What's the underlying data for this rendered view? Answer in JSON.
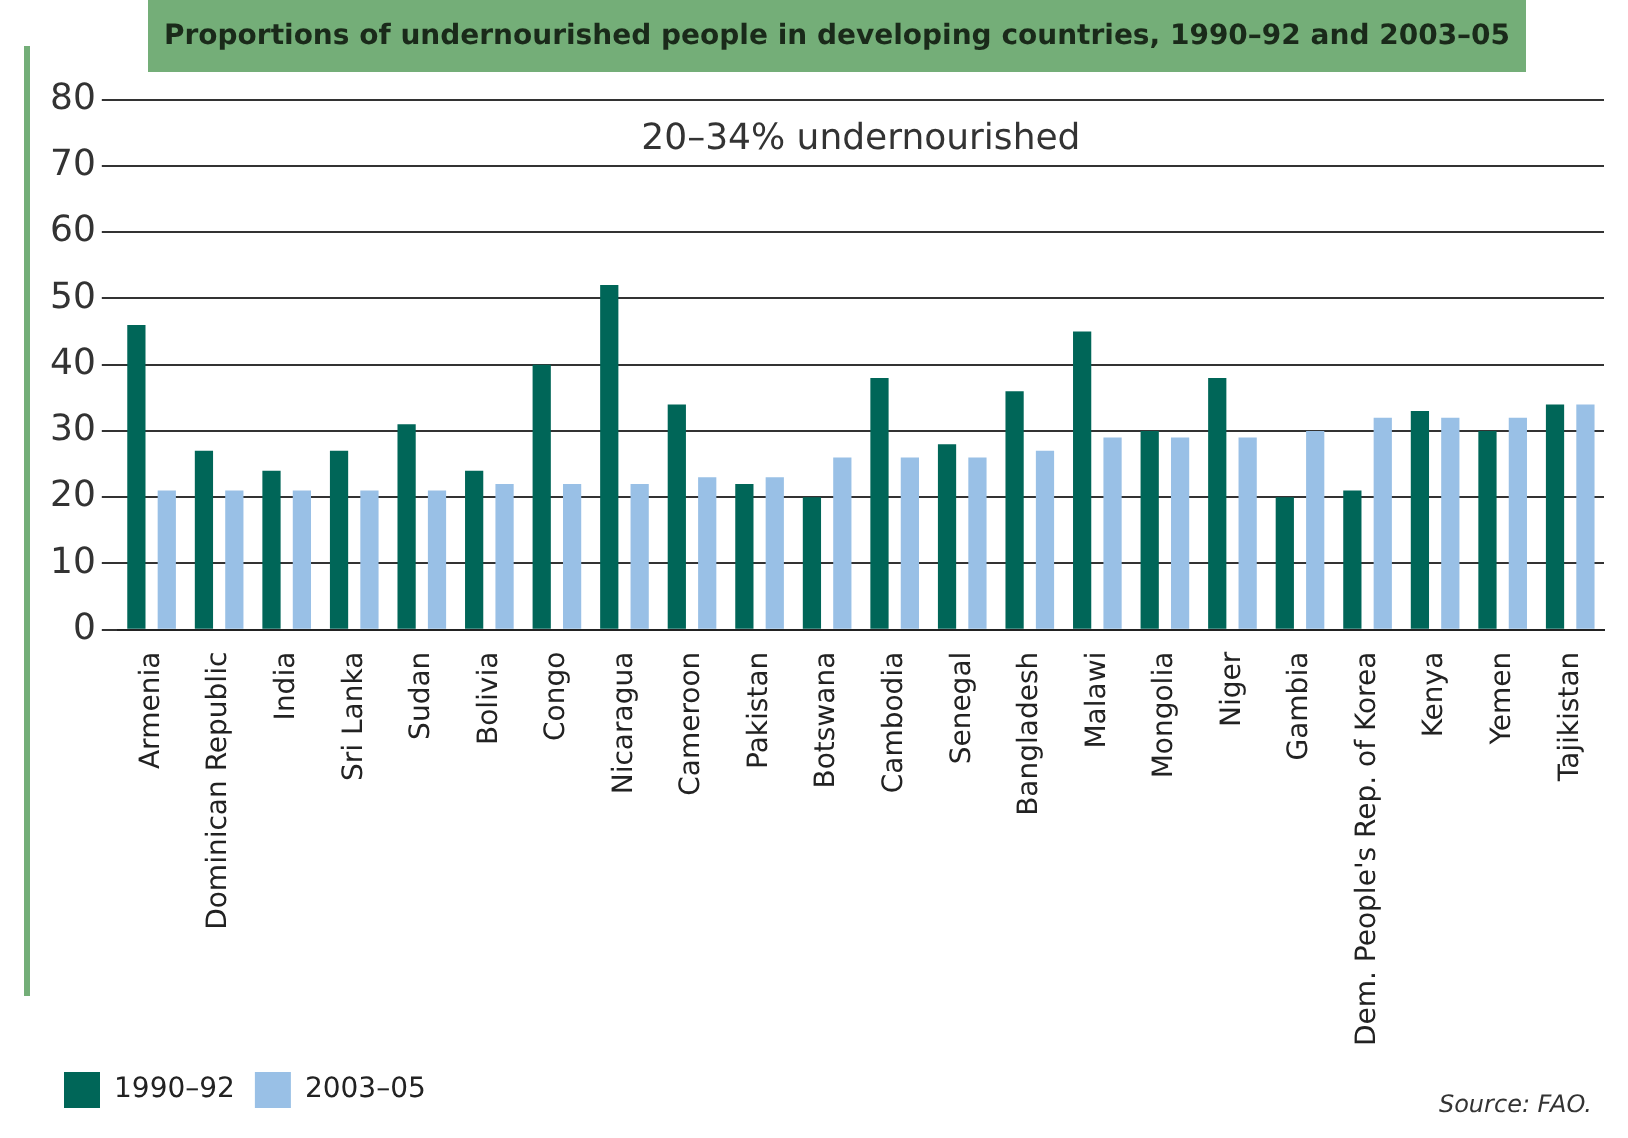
{
  "chart_data": {
    "type": "bar",
    "title": "Proportions of undernourished people in developing countries, 1990–92 and 2003–05",
    "subtitle": "20–34% undernourished",
    "categories": [
      "Armenia",
      "Dominican Republic",
      "India",
      "Sri Lanka",
      "Sudan",
      "Bolivia",
      "Congo",
      "Nicaragua",
      "Cameroon",
      "Pakistan",
      "Botswana",
      "Cambodia",
      "Senegal",
      "Bangladesh",
      "Malawi",
      "Mongolia",
      "Niger",
      "Gambia",
      "Dem. People's Rep. of Korea",
      "Kenya",
      "Yemen",
      "Tajikistan"
    ],
    "series": [
      {
        "name": "1990–92",
        "color": "#006658",
        "values": [
          46,
          27,
          24,
          27,
          31,
          24,
          40,
          52,
          34,
          22,
          20,
          38,
          28,
          36,
          45,
          30,
          38,
          20,
          21,
          33,
          30,
          34
        ]
      },
      {
        "name": "2003–05",
        "color": "#99c0e6",
        "values": [
          21,
          21,
          21,
          21,
          21,
          22,
          22,
          22,
          23,
          23,
          26,
          26,
          26,
          27,
          29,
          29,
          29,
          30,
          32,
          32,
          32,
          34
        ]
      }
    ],
    "ylim": [
      0,
      80
    ],
    "yticks": [
      0,
      10,
      20,
      30,
      40,
      50,
      60,
      70,
      80
    ],
    "grid": "y",
    "legend": "bottom left",
    "annotations": [
      "Source: FAO."
    ]
  }
}
